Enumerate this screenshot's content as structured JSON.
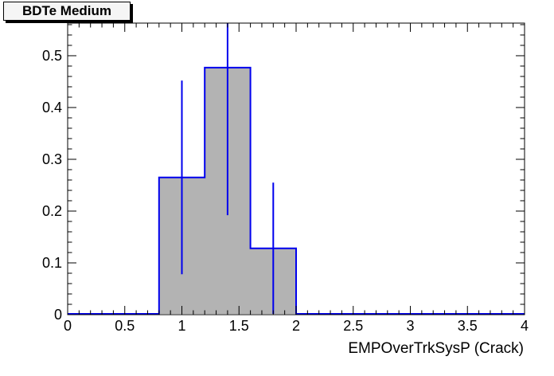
{
  "chart_data": {
    "type": "histogram",
    "title": "BDTe Medium",
    "xlabel": "EMPOverTrkSysP (Crack)",
    "ylabel": "",
    "xlim": [
      0,
      4
    ],
    "ylim": [
      0,
      0.563
    ],
    "x_major_step": 0.5,
    "x_minor_step": 0.1,
    "y_major_step": 0.1,
    "y_minor_step": 0.02,
    "x_tick_labels": [
      "0",
      "0.5",
      "1",
      "1.5",
      "2",
      "2.5",
      "3",
      "3.5",
      "4"
    ],
    "y_tick_labels": [
      "0",
      "0.1",
      "0.2",
      "0.3",
      "0.4",
      "0.5"
    ],
    "grid": false,
    "ticks_all_sides": true,
    "legend": null,
    "bins": [
      {
        "xlow": 0.8,
        "xhigh": 1.2,
        "value": 0.265,
        "err": 0.187
      },
      {
        "xlow": 1.2,
        "xhigh": 1.6,
        "value": 0.477,
        "err": 0.285
      },
      {
        "xlow": 1.6,
        "xhigh": 2.0,
        "value": 0.128,
        "err": 0.127
      }
    ],
    "error_bar_x": [
      1.0,
      1.4,
      1.8
    ],
    "colors": {
      "fill": "#b3b3b3",
      "line": "#0000ee",
      "axis": "#000000",
      "text": "#000000",
      "background": "#ffffff",
      "title_box_bg": "#f5f5f5",
      "title_box_shadow": "#000000"
    }
  }
}
